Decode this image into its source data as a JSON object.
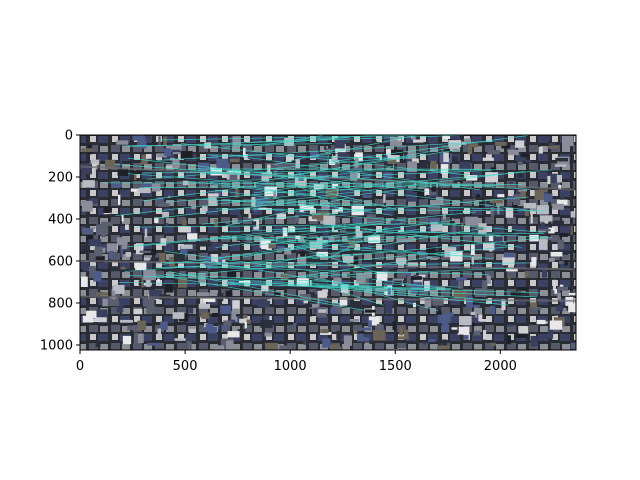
{
  "figure": {
    "background": "#ffffff",
    "image_extent": {
      "x": [
        0,
        2360
      ],
      "y": [
        1024,
        0
      ]
    },
    "match_line_color": "#40e0d0",
    "x_ticks": [
      {
        "value": 0,
        "label": "0"
      },
      {
        "value": 500,
        "label": "500"
      },
      {
        "value": 1000,
        "label": "1000"
      },
      {
        "value": 1500,
        "label": "1500"
      },
      {
        "value": 2000,
        "label": "2000"
      }
    ],
    "y_ticks": [
      {
        "value": 0,
        "label": "0"
      },
      {
        "value": 200,
        "label": "200"
      },
      {
        "value": 400,
        "label": "400"
      },
      {
        "value": 600,
        "label": "600"
      },
      {
        "value": 800,
        "label": "800"
      },
      {
        "value": 1000,
        "label": "1000"
      }
    ]
  }
}
